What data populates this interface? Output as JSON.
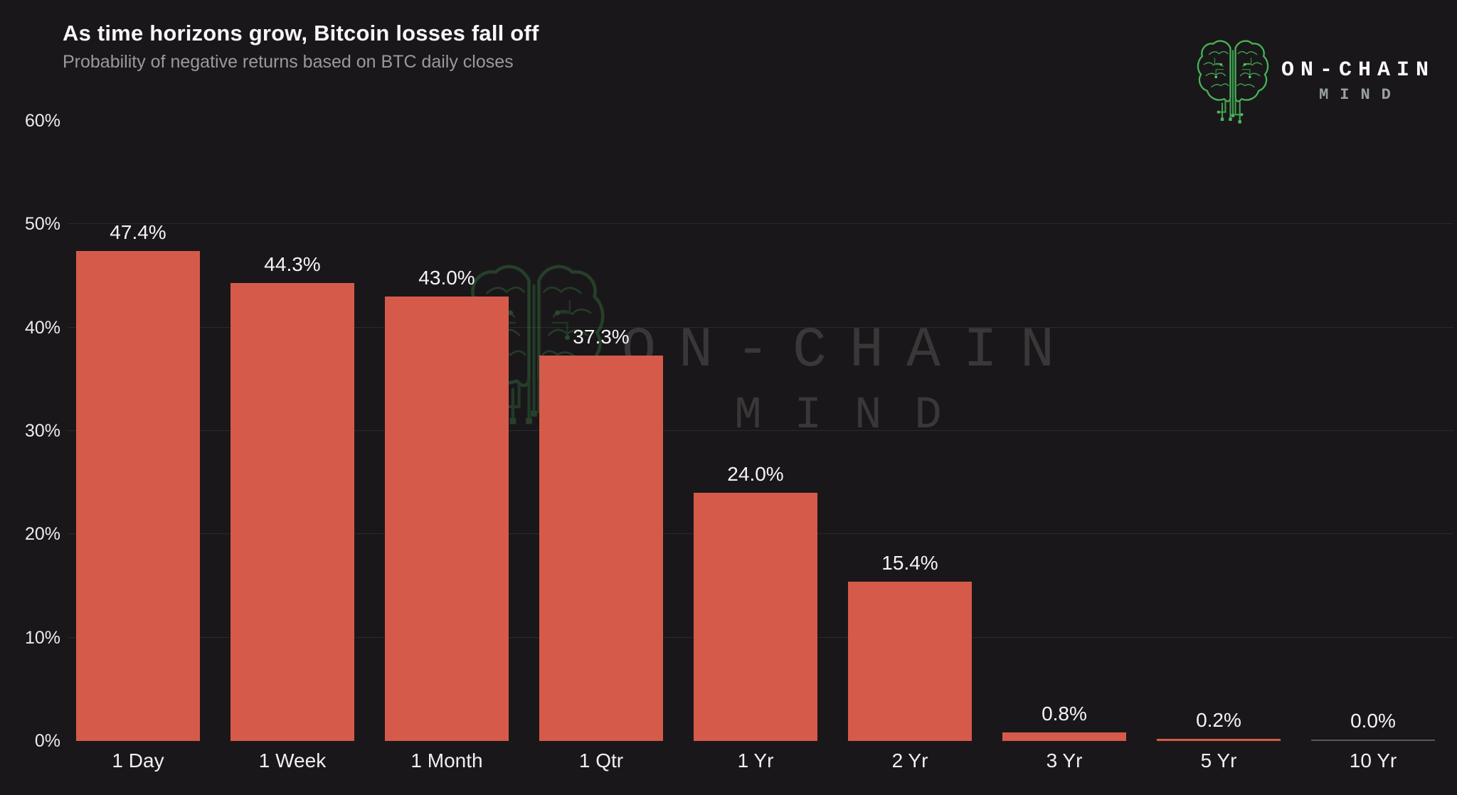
{
  "header": {
    "title": "As time horizons grow, Bitcoin losses fall off",
    "subtitle": "Probability of negative returns based on BTC daily closes"
  },
  "logo": {
    "line1": "ON-CHAIN",
    "line2": "MIND",
    "brain_icon": "circuit-brain-icon",
    "brain_color": "#46b457"
  },
  "watermark": {
    "line1": "ON-CHAIN",
    "line2": "MIND",
    "brain_icon": "circuit-brain-icon"
  },
  "chart_data": {
    "type": "bar",
    "title": "As time horizons grow, Bitcoin losses fall off",
    "subtitle": "Probability of negative returns based on BTC daily closes",
    "categories": [
      "1 Day",
      "1 Week",
      "1 Month",
      "1 Qtr",
      "1 Yr",
      "2 Yr",
      "3 Yr",
      "5 Yr",
      "10 Yr"
    ],
    "values": [
      47.4,
      44.3,
      43.0,
      37.3,
      24.0,
      15.4,
      0.8,
      0.2,
      0.0
    ],
    "value_labels": [
      "47.4%",
      "44.3%",
      "43.0%",
      "37.3%",
      "24.0%",
      "15.4%",
      "0.8%",
      "0.2%",
      "0.0%"
    ],
    "xlabel": "",
    "ylabel": "",
    "ylim": [
      0,
      60
    ],
    "ytick_values": [
      0,
      10,
      20,
      30,
      40,
      50,
      60
    ],
    "ytick_labels": [
      "0%",
      "10%",
      "20%",
      "30%",
      "40%",
      "50%",
      "60%"
    ],
    "gridline_values": [
      10,
      20,
      30,
      40,
      50
    ],
    "grid": "horizontal",
    "legend": "none",
    "bar_color": "#d65a4a",
    "zero_bar_line_color": "rgba(255,255,255,0.28)",
    "background_color": "#1a171a",
    "text_color": "#f2f2f2",
    "muted_text_color": "#9a9a9a",
    "gridline_color": "rgba(255,255,255,0.08)"
  }
}
